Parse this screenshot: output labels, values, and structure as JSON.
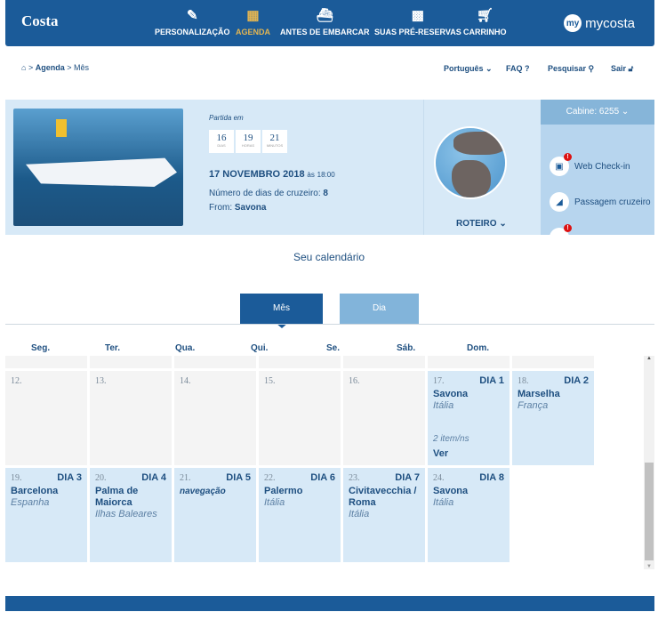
{
  "header": {
    "logo": "Costa",
    "nav": [
      {
        "label": "PERSONALIZAÇÃO",
        "icon": "pencil-icon",
        "active": false
      },
      {
        "label": "AGENDA",
        "icon": "calendar-icon",
        "active": true
      },
      {
        "label": "ANTES DE EMBARCAR",
        "icon": "ship-icon",
        "active": false
      },
      {
        "label": "SUAS PRÉ-RESERVAS",
        "icon": "grid-icon",
        "active": false
      },
      {
        "label": "CARRINHO",
        "icon": "cart-icon",
        "active": false
      }
    ],
    "mycosta_badge": "my",
    "mycosta": "mycosta"
  },
  "breadcrumb": {
    "home": "⌂",
    "sep": ">",
    "items": [
      "Agenda",
      "Mês"
    ]
  },
  "utility": {
    "language": "Português",
    "faq": "FAQ",
    "search": "Pesquisar",
    "logout": "Sair"
  },
  "cruise": {
    "departure_label": "Partida em",
    "countdown": [
      {
        "value": "16",
        "unit": "DIAS"
      },
      {
        "value": "19",
        "unit": "HORAS"
      },
      {
        "value": "21",
        "unit": "MINUTOS"
      }
    ],
    "date": "17 NOVEMBRO 2018",
    "time_prefix": "às",
    "time": "18:00",
    "days_label": "Número de dias de cruzeiro:",
    "days": "8",
    "from_label": "From:",
    "from": "Savona",
    "itinerary": "ROTEIRO",
    "cabin": "Cabine: 6255",
    "links": [
      {
        "label": "Web Check-in",
        "alert": "!"
      },
      {
        "label": "Passagem cruzeiro"
      },
      {
        "label": "",
        "alert": "!"
      }
    ]
  },
  "calendar": {
    "title": "Seu calendário",
    "tabs": [
      "Mês",
      "Dia"
    ],
    "weekdays": [
      "Seg.",
      "Ter.",
      "Qua.",
      "Qui.",
      "Se.",
      "Sáb.",
      "Dom."
    ],
    "rows": [
      [
        {
          "n": "12."
        },
        {
          "n": "13."
        },
        {
          "n": "14."
        },
        {
          "n": "15."
        },
        {
          "n": "16."
        },
        {
          "n": "17.",
          "day": "DIA 1",
          "city": "Savona",
          "country": "Itália",
          "items": "2 item/ns",
          "more": "Ver"
        },
        {
          "n": "18.",
          "day": "DIA 2",
          "city": "Marselha",
          "country": "França"
        }
      ],
      [
        {
          "n": "19.",
          "day": "DIA 3",
          "city": "Barcelona",
          "country": "Espanha"
        },
        {
          "n": "20.",
          "day": "DIA 4",
          "city": "Palma de Maiorca",
          "country": "Ilhas Baleares"
        },
        {
          "n": "21.",
          "day": "DIA 5",
          "sea": "navegação"
        },
        {
          "n": "22.",
          "day": "DIA 6",
          "city": "Palermo",
          "country": "Itália"
        },
        {
          "n": "23.",
          "day": "DIA 7",
          "city": "Civitavecchia / Roma",
          "country": "Itália"
        },
        {
          "n": "24.",
          "day": "DIA 8",
          "city": "Savona",
          "country": "Itália"
        }
      ]
    ]
  },
  "colors": {
    "primary": "#1b5b99",
    "accent": "#e3b552",
    "light": "#d7e9f7"
  }
}
